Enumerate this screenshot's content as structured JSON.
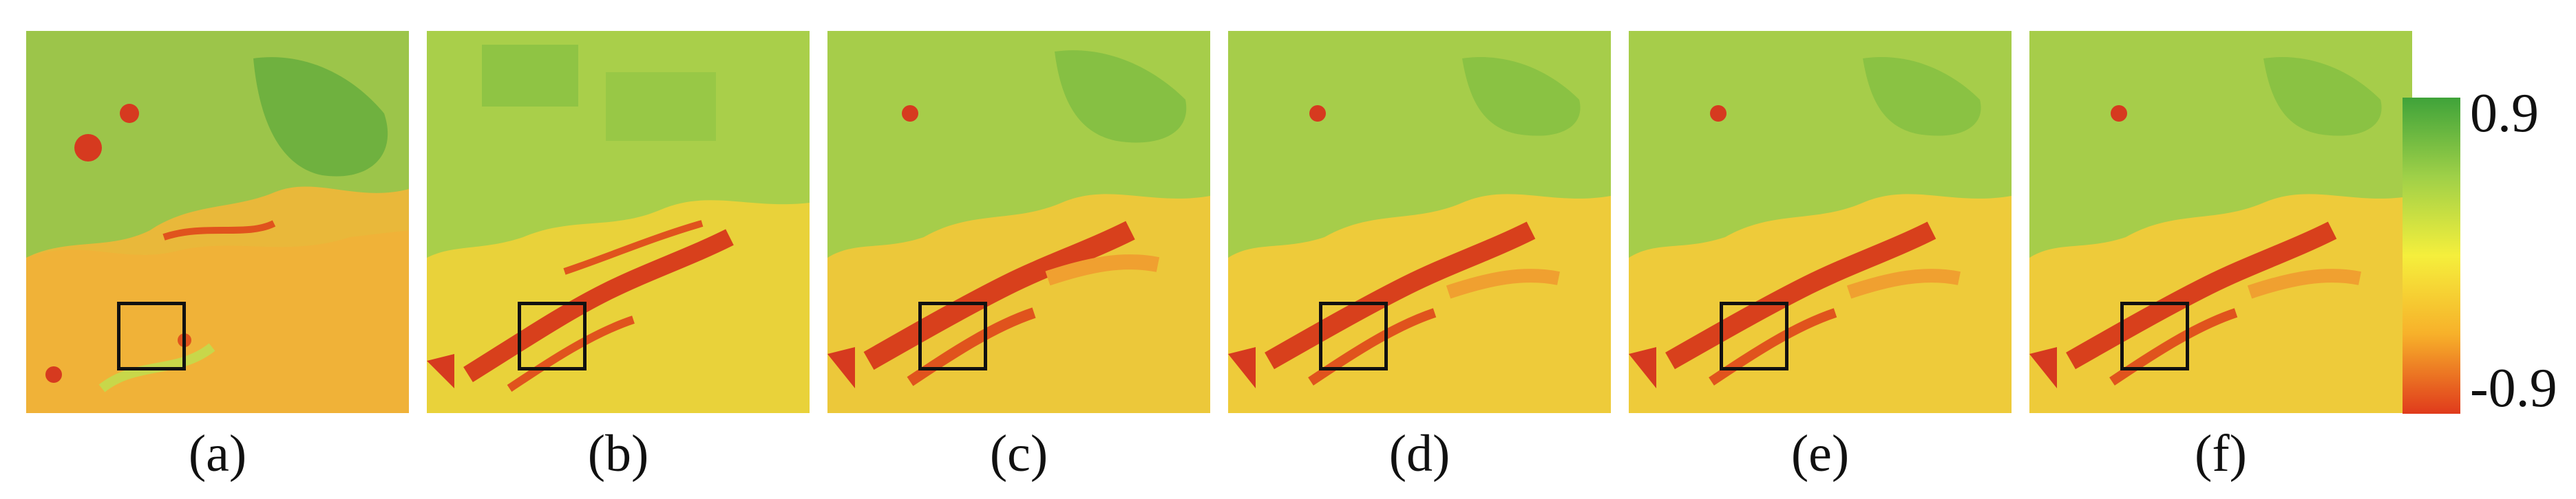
{
  "panels": [
    {
      "caption": "(a)"
    },
    {
      "caption": "(b)"
    },
    {
      "caption": "(c)"
    },
    {
      "caption": "(d)"
    },
    {
      "caption": "(e)"
    },
    {
      "caption": "(f)"
    }
  ],
  "colorbar": {
    "max_label": "0.9",
    "min_label": "-0.9",
    "colors": [
      "#3fa33a",
      "#9fd048",
      "#f5ef3c",
      "#f7b02a",
      "#e03a1c"
    ]
  }
}
